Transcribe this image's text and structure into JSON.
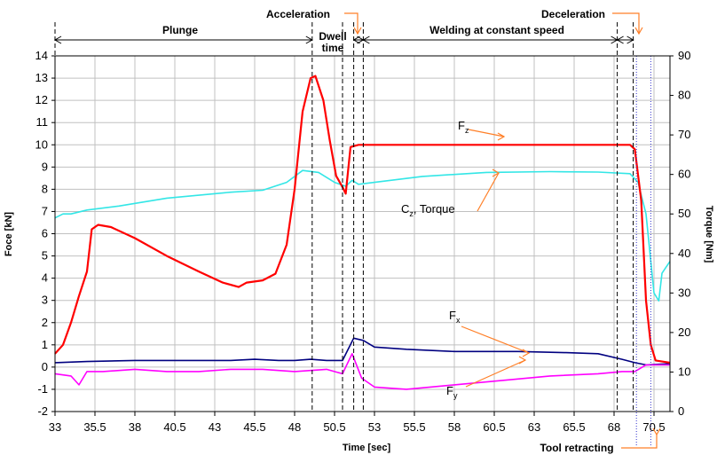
{
  "chart_data": {
    "type": "line",
    "xlabel": "Time [sec]",
    "ylabel": "Foce [kN]",
    "y2label": "Torque [Nm]",
    "xlim": [
      33,
      71.5
    ],
    "ylim": [
      -2,
      14
    ],
    "y2lim": [
      0,
      90
    ],
    "xticks": [
      "33",
      "35.5",
      "38",
      "40.5",
      "43",
      "45.5",
      "48",
      "50.5",
      "53",
      "55.5",
      "58",
      "60.5",
      "63",
      "65.5",
      "68",
      "70.5"
    ],
    "yticks": [
      "-2",
      "-1",
      "0",
      "1",
      "2",
      "3",
      "4",
      "5",
      "6",
      "7",
      "8",
      "9",
      "10",
      "11",
      "12",
      "13",
      "14"
    ],
    "y2ticks": [
      "0",
      "10",
      "20",
      "30",
      "40",
      "50",
      "60",
      "70",
      "80",
      "90"
    ],
    "grid": true,
    "colors": {
      "fz": "#ff0000",
      "torque": "#33e6e6",
      "fx": "#000080",
      "fy": "#ff00ff",
      "arrow": "#ff7f27",
      "grid": "#c0c0c0",
      "dotted": "#3333cc"
    },
    "phases": {
      "plunge": "Plunge",
      "acceleration": "Acceleration",
      "dwell_1": "Dwell",
      "dwell_2": "time",
      "welding": "Welding at constant speed",
      "deceleration": "Deceleration",
      "retracting": "Tool retracting"
    },
    "phase_markers": [
      49.1,
      51.0,
      51.7,
      52.3,
      68.2,
      69.2
    ],
    "retract_markers": [
      69.4,
      70.3
    ],
    "series": [
      {
        "key": "fz",
        "label": "F",
        "subscript": "z",
        "axis": "left",
        "points": [
          [
            33,
            0.6
          ],
          [
            33.5,
            1.0
          ],
          [
            34,
            2.0
          ],
          [
            34.5,
            3.2
          ],
          [
            35.0,
            4.3
          ],
          [
            35.3,
            6.2
          ],
          [
            35.7,
            6.4
          ],
          [
            36.5,
            6.3
          ],
          [
            38,
            5.8
          ],
          [
            40,
            5.0
          ],
          [
            42,
            4.3
          ],
          [
            43.5,
            3.8
          ],
          [
            44.5,
            3.6
          ],
          [
            45,
            3.8
          ],
          [
            46,
            3.9
          ],
          [
            46.8,
            4.2
          ],
          [
            47.5,
            5.5
          ],
          [
            48.0,
            8.0
          ],
          [
            48.5,
            11.5
          ],
          [
            49.0,
            13.0
          ],
          [
            49.3,
            13.1
          ],
          [
            49.8,
            12.0
          ],
          [
            50.2,
            10.2
          ],
          [
            50.6,
            8.6
          ],
          [
            51.0,
            8.1
          ],
          [
            51.2,
            7.8
          ],
          [
            51.5,
            9.9
          ],
          [
            52,
            10.0
          ],
          [
            54,
            10.0
          ],
          [
            58,
            10.0
          ],
          [
            62,
            10.0
          ],
          [
            66,
            10.0
          ],
          [
            69.0,
            10.0
          ],
          [
            69.3,
            9.8
          ],
          [
            69.7,
            7.5
          ],
          [
            70.0,
            3.0
          ],
          [
            70.3,
            1.0
          ],
          [
            70.6,
            0.3
          ],
          [
            71.5,
            0.2
          ]
        ]
      },
      {
        "key": "torque",
        "label": "C",
        "subscript": "z",
        "label_suffix": ", Torque",
        "axis": "right",
        "points": [
          [
            33,
            49
          ],
          [
            33.5,
            50
          ],
          [
            34,
            50
          ],
          [
            35,
            51
          ],
          [
            37,
            52
          ],
          [
            40,
            54
          ],
          [
            44,
            55.5
          ],
          [
            46,
            56
          ],
          [
            47.5,
            58
          ],
          [
            48.5,
            61
          ],
          [
            49.5,
            60.5
          ],
          [
            50.5,
            58
          ],
          [
            51.2,
            57
          ],
          [
            51.6,
            58.5
          ],
          [
            52,
            57.5
          ],
          [
            53,
            58
          ],
          [
            56,
            59.5
          ],
          [
            60,
            60.5
          ],
          [
            64,
            60.7
          ],
          [
            67,
            60.6
          ],
          [
            69,
            60.2
          ],
          [
            69.5,
            58
          ],
          [
            70.0,
            50
          ],
          [
            70.3,
            38
          ],
          [
            70.5,
            30
          ],
          [
            70.8,
            28
          ],
          [
            71,
            35
          ],
          [
            71.5,
            38
          ]
        ]
      },
      {
        "key": "fx",
        "label": "F",
        "subscript": "x",
        "axis": "left",
        "points": [
          [
            33,
            0.2
          ],
          [
            35,
            0.25
          ],
          [
            38,
            0.3
          ],
          [
            41,
            0.3
          ],
          [
            44,
            0.3
          ],
          [
            45.5,
            0.35
          ],
          [
            47,
            0.3
          ],
          [
            48,
            0.3
          ],
          [
            49,
            0.35
          ],
          [
            50,
            0.3
          ],
          [
            51,
            0.3
          ],
          [
            51.7,
            1.3
          ],
          [
            52.3,
            1.2
          ],
          [
            53,
            0.9
          ],
          [
            55,
            0.8
          ],
          [
            58,
            0.7
          ],
          [
            62,
            0.7
          ],
          [
            65,
            0.65
          ],
          [
            67,
            0.6
          ],
          [
            68.5,
            0.35
          ],
          [
            69.3,
            0.2
          ],
          [
            70,
            0.1
          ],
          [
            71.5,
            0.15
          ]
        ]
      },
      {
        "key": "fy",
        "label": "F",
        "subscript": "y",
        "axis": "left",
        "points": [
          [
            33,
            -0.3
          ],
          [
            34,
            -0.4
          ],
          [
            34.5,
            -0.8
          ],
          [
            35,
            -0.2
          ],
          [
            36,
            -0.2
          ],
          [
            38,
            -0.1
          ],
          [
            40,
            -0.2
          ],
          [
            42,
            -0.2
          ],
          [
            44,
            -0.1
          ],
          [
            46,
            -0.1
          ],
          [
            48,
            -0.2
          ],
          [
            50,
            -0.1
          ],
          [
            51,
            -0.3
          ],
          [
            51.6,
            0.6
          ],
          [
            52.2,
            -0.5
          ],
          [
            53,
            -0.9
          ],
          [
            55,
            -1.0
          ],
          [
            58,
            -0.8
          ],
          [
            61,
            -0.6
          ],
          [
            64,
            -0.4
          ],
          [
            67,
            -0.3
          ],
          [
            68.5,
            -0.2
          ],
          [
            69.3,
            -0.2
          ],
          [
            70,
            0.1
          ],
          [
            71.5,
            0.1
          ]
        ]
      }
    ]
  }
}
